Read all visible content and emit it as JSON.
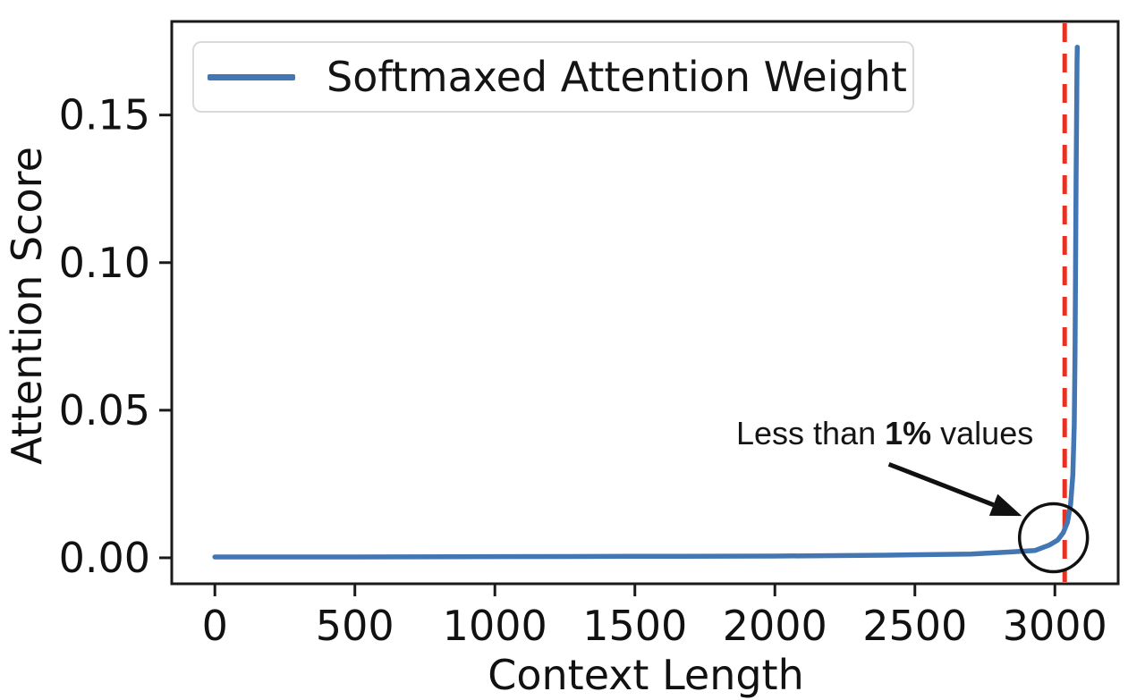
{
  "chart_data": {
    "type": "line",
    "title": "",
    "xlabel": "Context Length",
    "ylabel": "Attention Score",
    "xlim": [
      -154,
      3226
    ],
    "ylim": [
      -0.0088,
      0.1817
    ],
    "grid": false,
    "xticks": {
      "values": [
        0,
        500,
        1000,
        1500,
        2000,
        2500,
        3000
      ],
      "labels": [
        "0",
        "500",
        "1000",
        "1500",
        "2000",
        "2500",
        "3000"
      ]
    },
    "yticks": {
      "values": [
        0.0,
        0.05,
        0.1,
        0.15
      ],
      "labels": [
        "0.00",
        "0.05",
        "0.10",
        "0.15"
      ]
    },
    "legend": {
      "position": "upper left",
      "entries": [
        {
          "label": "Softmaxed Attention Weight",
          "color": "#4277b4"
        }
      ]
    },
    "series": [
      {
        "name": "Softmaxed Attention Weight",
        "color": "#4277b4",
        "line_width": 5.5,
        "points": [
          [
            0,
            0.0003
          ],
          [
            500,
            0.0003
          ],
          [
            1000,
            0.0004
          ],
          [
            1500,
            0.0005
          ],
          [
            2000,
            0.0006
          ],
          [
            2400,
            0.0009
          ],
          [
            2700,
            0.0013
          ],
          [
            2850,
            0.002
          ],
          [
            2930,
            0.0025
          ],
          [
            2980,
            0.0043
          ],
          [
            3010,
            0.006
          ],
          [
            3030,
            0.0085
          ],
          [
            3045,
            0.012
          ],
          [
            3056,
            0.018
          ],
          [
            3064,
            0.028
          ],
          [
            3069,
            0.045
          ],
          [
            3072,
            0.07
          ],
          [
            3074,
            0.1
          ],
          [
            3076,
            0.13
          ],
          [
            3078,
            0.155
          ],
          [
            3079,
            0.168
          ],
          [
            3080,
            0.173
          ]
        ]
      }
    ],
    "vline": {
      "x": 3035,
      "color": "#e73223",
      "style": "dashed",
      "line_width": 5
    },
    "annotation": {
      "text_prefix": "Less than ",
      "text_bold": "1%",
      "text_suffix": " values",
      "arrow_from": [
        2407,
        0.0317
      ],
      "arrow_to": [
        2882,
        0.0142
      ],
      "arrow_color": "#111111",
      "circle_center": [
        2995,
        0.0068
      ],
      "circle_radius_px": 38,
      "circle_color": "#111111"
    },
    "frame_color": "#1a1a1a"
  }
}
